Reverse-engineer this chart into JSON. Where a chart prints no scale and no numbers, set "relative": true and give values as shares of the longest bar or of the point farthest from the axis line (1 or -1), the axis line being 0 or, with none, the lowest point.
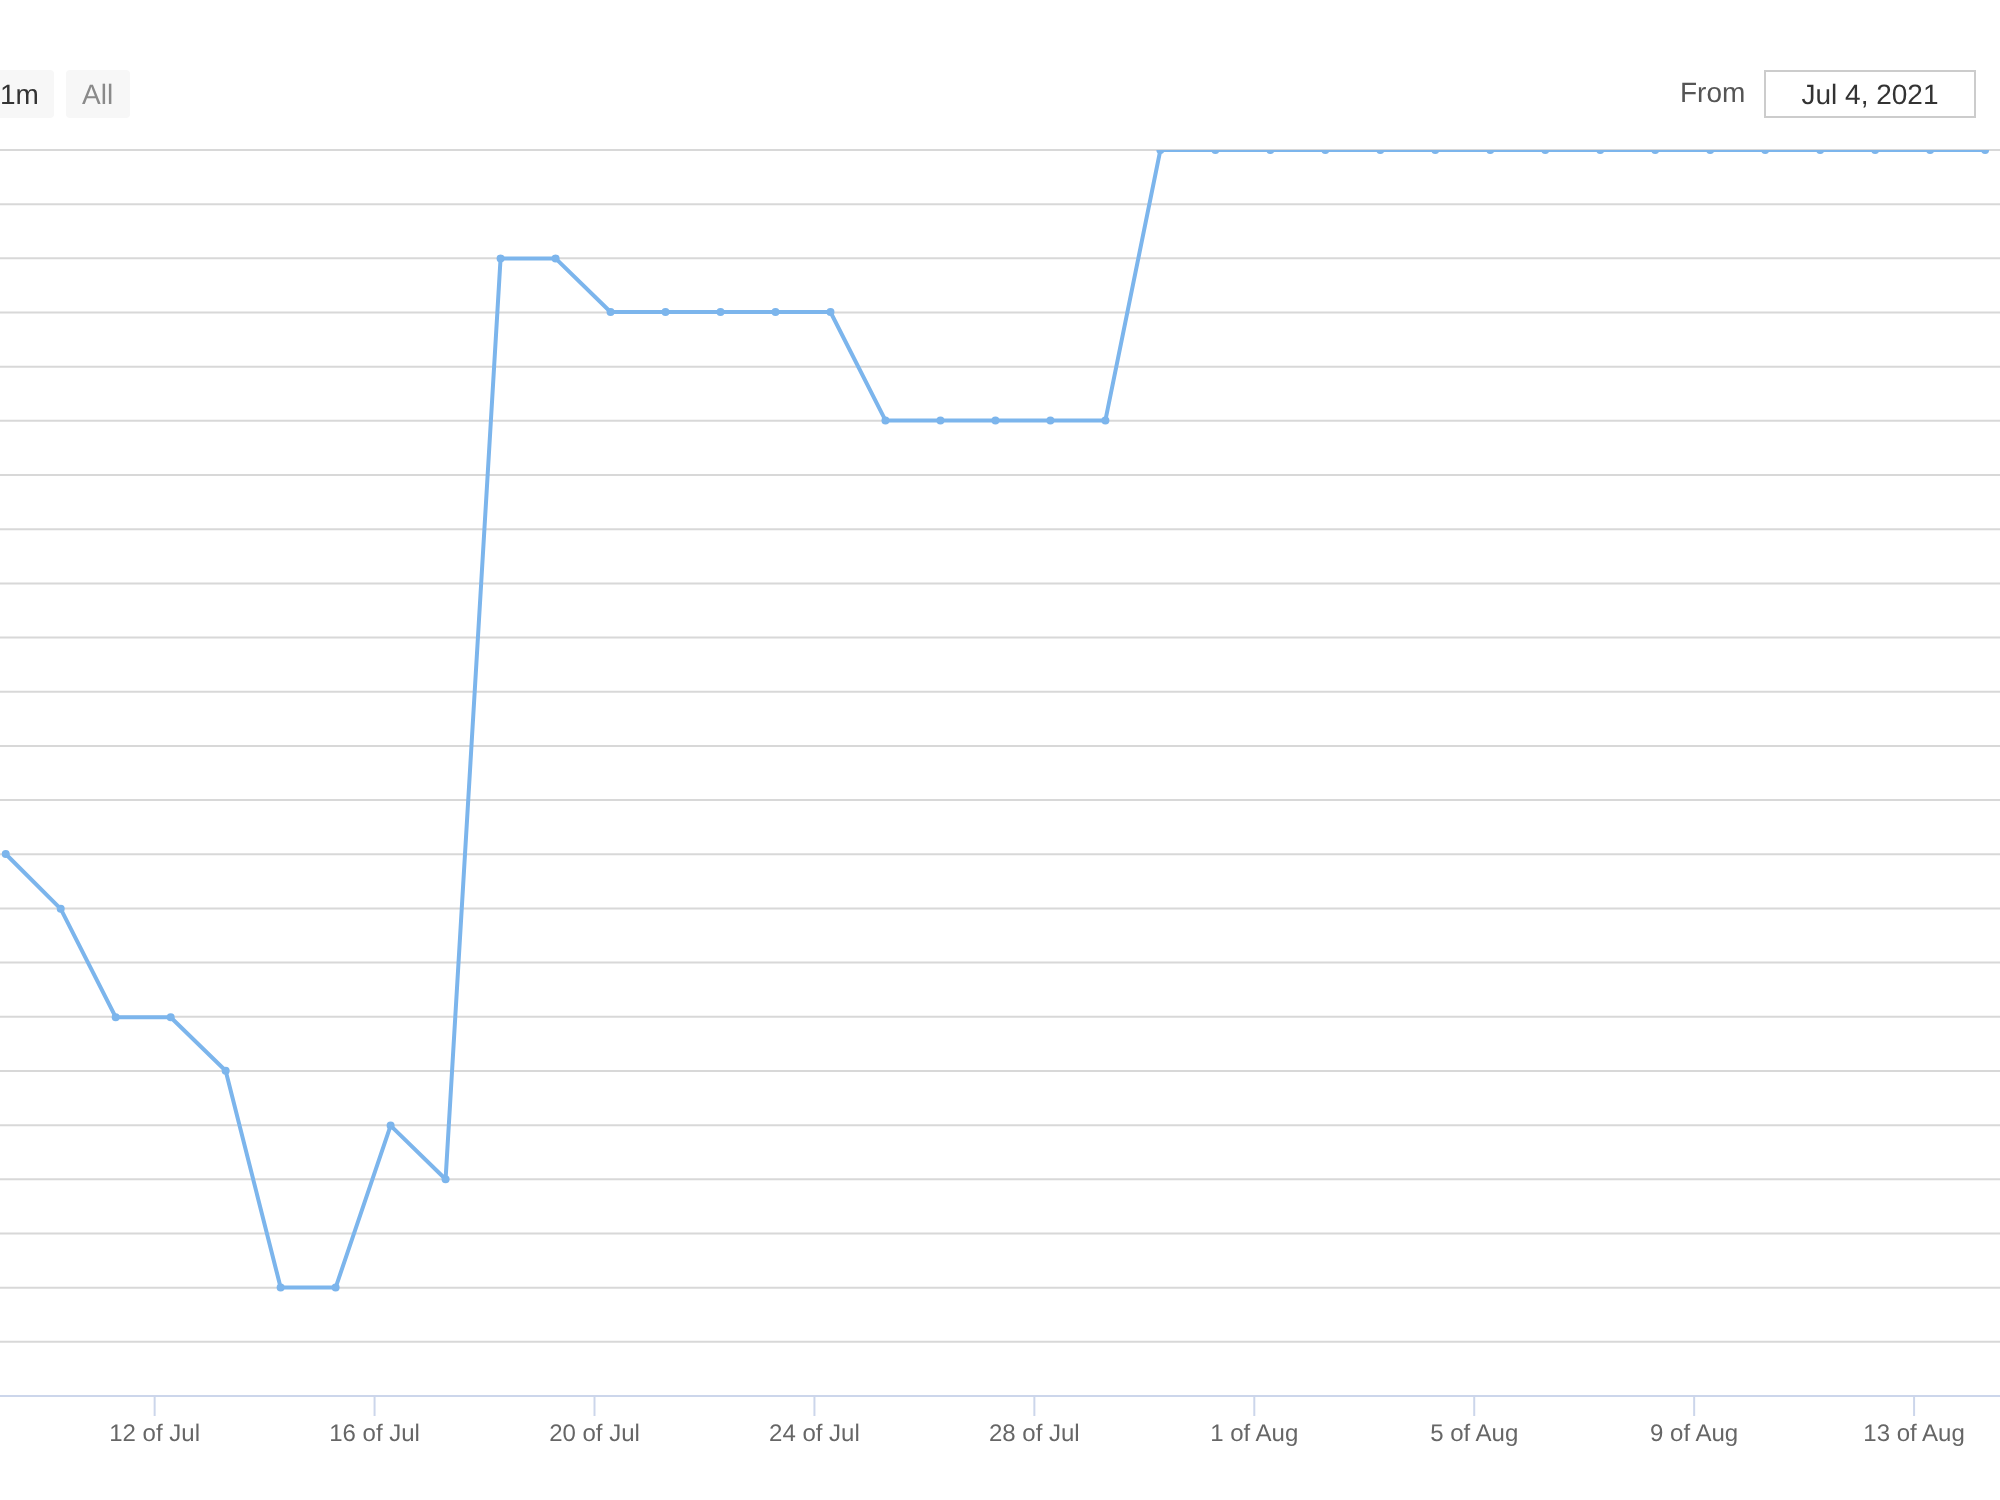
{
  "chart_data": {
    "type": "line",
    "relative": true,
    "grid": "y",
    "legend": false,
    "tick_labels": "x",
    "marker": "circle",
    "line_style": "solid",
    "annotations": [
      "1m",
      "All",
      "From",
      "Jul 4, 2021"
    ],
    "x": [
      "2021-07-09T07:00",
      "2021-07-10T07:00",
      "2021-07-11T07:00",
      "2021-07-12T07:00",
      "2021-07-13T07:00",
      "2021-07-14T07:00",
      "2021-07-15T07:00",
      "2021-07-16T07:00",
      "2021-07-17T07:00",
      "2021-07-18T07:00",
      "2021-07-19T07:00",
      "2021-07-20T07:00",
      "2021-07-21T07:00",
      "2021-07-22T07:00",
      "2021-07-23T07:00",
      "2021-07-24T07:00",
      "2021-07-25T07:00",
      "2021-07-26T07:00",
      "2021-07-27T07:00",
      "2021-07-28T07:00",
      "2021-07-29T07:00",
      "2021-07-30T07:00",
      "2021-07-31T07:00",
      "2021-08-01T07:00",
      "2021-08-02T07:00",
      "2021-08-03T07:00",
      "2021-08-04T07:00",
      "2021-08-05T07:00",
      "2021-08-06T07:00",
      "2021-08-07T07:00",
      "2021-08-08T07:00",
      "2021-08-09T07:00",
      "2021-08-10T07:00",
      "2021-08-11T07:00",
      "2021-08-12T07:00",
      "2021-08-13T07:00",
      "2021-08-14T07:00"
    ],
    "xlim": [
      "2021-07-09T04:30",
      "2021-08-14T13:30"
    ],
    "xticks": [
      {
        "value": "2021-07-12",
        "label": "12 of Jul"
      },
      {
        "value": "2021-07-16",
        "label": "16 of Jul"
      },
      {
        "value": "2021-07-20",
        "label": "20 of Jul"
      },
      {
        "value": "2021-07-24",
        "label": "24 of Jul"
      },
      {
        "value": "2021-07-28",
        "label": "28 of Jul"
      },
      {
        "value": "2021-08-01",
        "label": "1 of Aug"
      },
      {
        "value": "2021-08-05",
        "label": "5 of Aug"
      },
      {
        "value": "2021-08-09",
        "label": "9 of Aug"
      },
      {
        "value": "2021-08-13",
        "label": "13 of Aug"
      }
    ],
    "series": [
      {
        "color": "#7cb5ec",
        "values": [
          0.435,
          0.391,
          0.304,
          0.304,
          0.261,
          0.087,
          0.087,
          0.217,
          0.174,
          0.913,
          0.913,
          0.87,
          0.87,
          0.87,
          0.87,
          0.87,
          0.783,
          0.783,
          0.783,
          0.783,
          0.783,
          1,
          1,
          1,
          1,
          1,
          1,
          1,
          1,
          1,
          1,
          1,
          1,
          1,
          1,
          1,
          1
        ]
      }
    ]
  }
}
